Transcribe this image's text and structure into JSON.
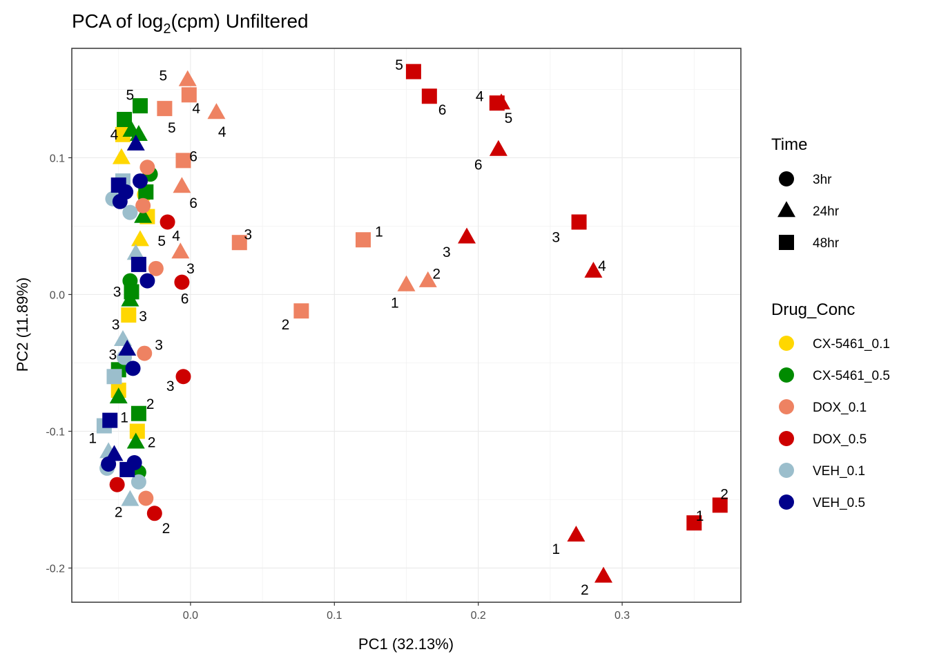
{
  "chart_data": {
    "type": "scatter",
    "title": "PCA of log",
    "title_sub": "2",
    "title_rest": "(cpm) Unfiltered",
    "xlabel": "PC1 (32.13%)",
    "ylabel": "PC2 (11.89%)",
    "xlim": [
      -0.0825,
      0.3825
    ],
    "ylim": [
      -0.225,
      0.18
    ],
    "x_ticks": [
      0.0,
      0.1,
      0.2,
      0.3
    ],
    "x_tick_labels": [
      "0.0",
      "0.1",
      "0.2",
      "0.3"
    ],
    "y_ticks": [
      -0.2,
      -0.1,
      0.0,
      0.1
    ],
    "y_tick_labels": [
      "-0.2",
      "-0.1",
      "0.0",
      "0.1"
    ],
    "grid": true,
    "legend_time": {
      "title": "Time",
      "entries": [
        {
          "label": "3hr",
          "shape": "circle"
        },
        {
          "label": "24hr",
          "shape": "triangle"
        },
        {
          "label": "48hr",
          "shape": "square"
        }
      ]
    },
    "legend_drug": {
      "title": "Drug_Conc",
      "entries": [
        {
          "label": "CX-5461_0.1",
          "color": "#FFD700"
        },
        {
          "label": "CX-5461_0.5",
          "color": "#008B00"
        },
        {
          "label": "DOX_0.1",
          "color": "#EE8262"
        },
        {
          "label": "DOX_0.5",
          "color": "#CD0000"
        },
        {
          "label": "VEH_0.1",
          "color": "#9BBECC"
        },
        {
          "label": "VEH_0.5",
          "color": "#00008B"
        }
      ]
    },
    "points": [
      {
        "x": -0.048,
        "y": 0.1,
        "shape": "triangle",
        "color": "#FFD700"
      },
      {
        "x": -0.047,
        "y": 0.117,
        "shape": "square",
        "color": "#FFD700"
      },
      {
        "x": -0.032,
        "y": 0.073,
        "shape": "circle",
        "color": "#FFD700"
      },
      {
        "x": -0.03,
        "y": 0.057,
        "shape": "square",
        "color": "#FFD700"
      },
      {
        "x": -0.035,
        "y": 0.04,
        "shape": "triangle",
        "color": "#FFD700"
      },
      {
        "x": -0.043,
        "y": -0.015,
        "shape": "square",
        "color": "#FFD700"
      },
      {
        "x": -0.05,
        "y": -0.07,
        "shape": "square",
        "color": "#FFD700"
      },
      {
        "x": -0.037,
        "y": -0.1,
        "shape": "square",
        "color": "#FFD700"
      },
      {
        "x": -0.046,
        "y": 0.128,
        "shape": "square",
        "color": "#008B00"
      },
      {
        "x": -0.035,
        "y": 0.138,
        "shape": "square",
        "color": "#008B00"
      },
      {
        "x": -0.041,
        "y": 0.12,
        "shape": "triangle",
        "color": "#008B00"
      },
      {
        "x": -0.036,
        "y": 0.117,
        "shape": "triangle",
        "color": "#008B00"
      },
      {
        "x": -0.028,
        "y": 0.088,
        "shape": "circle",
        "color": "#008B00"
      },
      {
        "x": -0.031,
        "y": 0.075,
        "shape": "square",
        "color": "#008B00"
      },
      {
        "x": -0.033,
        "y": 0.057,
        "shape": "triangle",
        "color": "#008B00"
      },
      {
        "x": -0.042,
        "y": 0.01,
        "shape": "circle",
        "color": "#008B00"
      },
      {
        "x": -0.041,
        "y": 0.002,
        "shape": "square",
        "color": "#008B00"
      },
      {
        "x": -0.042,
        "y": -0.004,
        "shape": "triangle",
        "color": "#008B00"
      },
      {
        "x": -0.05,
        "y": -0.055,
        "shape": "square",
        "color": "#008B00"
      },
      {
        "x": -0.05,
        "y": -0.075,
        "shape": "triangle",
        "color": "#008B00"
      },
      {
        "x": -0.036,
        "y": -0.087,
        "shape": "square",
        "color": "#008B00"
      },
      {
        "x": -0.038,
        "y": -0.108,
        "shape": "triangle",
        "color": "#008B00"
      },
      {
        "x": -0.036,
        "y": -0.13,
        "shape": "circle",
        "color": "#008B00"
      },
      {
        "x": -0.002,
        "y": 0.157,
        "shape": "triangle",
        "color": "#EE8262"
      },
      {
        "x": -0.001,
        "y": 0.146,
        "shape": "square",
        "color": "#EE8262"
      },
      {
        "x": -0.018,
        "y": 0.136,
        "shape": "square",
        "color": "#EE8262"
      },
      {
        "x": 0.018,
        "y": 0.133,
        "shape": "triangle",
        "color": "#EE8262"
      },
      {
        "x": -0.005,
        "y": 0.098,
        "shape": "square",
        "color": "#EE8262"
      },
      {
        "x": -0.006,
        "y": 0.079,
        "shape": "triangle",
        "color": "#EE8262"
      },
      {
        "x": -0.03,
        "y": 0.093,
        "shape": "circle",
        "color": "#EE8262"
      },
      {
        "x": -0.033,
        "y": 0.065,
        "shape": "circle",
        "color": "#EE8262"
      },
      {
        "x": 0.034,
        "y": 0.038,
        "shape": "square",
        "color": "#EE8262"
      },
      {
        "x": 0.12,
        "y": 0.04,
        "shape": "square",
        "color": "#EE8262"
      },
      {
        "x": -0.007,
        "y": 0.031,
        "shape": "triangle",
        "color": "#EE8262"
      },
      {
        "x": -0.024,
        "y": 0.019,
        "shape": "circle",
        "color": "#EE8262"
      },
      {
        "x": 0.077,
        "y": -0.012,
        "shape": "square",
        "color": "#EE8262"
      },
      {
        "x": 0.15,
        "y": 0.007,
        "shape": "triangle",
        "color": "#EE8262"
      },
      {
        "x": 0.165,
        "y": 0.01,
        "shape": "triangle",
        "color": "#EE8262"
      },
      {
        "x": -0.032,
        "y": -0.043,
        "shape": "circle",
        "color": "#EE8262"
      },
      {
        "x": -0.031,
        "y": -0.149,
        "shape": "circle",
        "color": "#EE8262"
      },
      {
        "x": 0.155,
        "y": 0.163,
        "shape": "square",
        "color": "#CD0000"
      },
      {
        "x": 0.166,
        "y": 0.145,
        "shape": "square",
        "color": "#CD0000"
      },
      {
        "x": 0.213,
        "y": 0.14,
        "shape": "square",
        "color": "#CD0000"
      },
      {
        "x": 0.216,
        "y": 0.14,
        "shape": "triangle",
        "color": "#CD0000"
      },
      {
        "x": 0.214,
        "y": 0.106,
        "shape": "triangle",
        "color": "#CD0000"
      },
      {
        "x": 0.27,
        "y": 0.053,
        "shape": "square",
        "color": "#CD0000"
      },
      {
        "x": 0.192,
        "y": 0.042,
        "shape": "triangle",
        "color": "#CD0000"
      },
      {
        "x": 0.28,
        "y": 0.017,
        "shape": "triangle",
        "color": "#CD0000"
      },
      {
        "x": -0.016,
        "y": 0.053,
        "shape": "circle",
        "color": "#CD0000"
      },
      {
        "x": -0.006,
        "y": 0.009,
        "shape": "circle",
        "color": "#CD0000"
      },
      {
        "x": -0.005,
        "y": -0.06,
        "shape": "circle",
        "color": "#CD0000"
      },
      {
        "x": -0.051,
        "y": -0.139,
        "shape": "circle",
        "color": "#CD0000"
      },
      {
        "x": -0.025,
        "y": -0.16,
        "shape": "circle",
        "color": "#CD0000"
      },
      {
        "x": 0.268,
        "y": -0.176,
        "shape": "triangle",
        "color": "#CD0000"
      },
      {
        "x": 0.287,
        "y": -0.206,
        "shape": "triangle",
        "color": "#CD0000"
      },
      {
        "x": 0.35,
        "y": -0.167,
        "shape": "square",
        "color": "#CD0000"
      },
      {
        "x": 0.368,
        "y": -0.154,
        "shape": "square",
        "color": "#CD0000"
      },
      {
        "x": -0.047,
        "y": 0.083,
        "shape": "square",
        "color": "#9BBECC"
      },
      {
        "x": -0.054,
        "y": 0.07,
        "shape": "circle",
        "color": "#9BBECC"
      },
      {
        "x": -0.042,
        "y": 0.06,
        "shape": "circle",
        "color": "#9BBECC"
      },
      {
        "x": -0.038,
        "y": 0.03,
        "shape": "triangle",
        "color": "#9BBECC"
      },
      {
        "x": -0.047,
        "y": -0.033,
        "shape": "triangle",
        "color": "#9BBECC"
      },
      {
        "x": -0.046,
        "y": -0.046,
        "shape": "circle",
        "color": "#9BBECC"
      },
      {
        "x": -0.053,
        "y": -0.06,
        "shape": "square",
        "color": "#9BBECC"
      },
      {
        "x": -0.06,
        "y": -0.096,
        "shape": "square",
        "color": "#9BBECC"
      },
      {
        "x": -0.057,
        "y": -0.115,
        "shape": "triangle",
        "color": "#9BBECC"
      },
      {
        "x": -0.058,
        "y": -0.127,
        "shape": "circle",
        "color": "#9BBECC"
      },
      {
        "x": -0.036,
        "y": -0.137,
        "shape": "circle",
        "color": "#9BBECC"
      },
      {
        "x": -0.042,
        "y": -0.15,
        "shape": "triangle",
        "color": "#9BBECC"
      },
      {
        "x": -0.038,
        "y": 0.11,
        "shape": "triangle",
        "color": "#00008B"
      },
      {
        "x": -0.05,
        "y": 0.08,
        "shape": "square",
        "color": "#00008B"
      },
      {
        "x": -0.045,
        "y": 0.075,
        "shape": "circle",
        "color": "#00008B"
      },
      {
        "x": -0.049,
        "y": 0.068,
        "shape": "circle",
        "color": "#00008B"
      },
      {
        "x": -0.035,
        "y": 0.083,
        "shape": "circle",
        "color": "#00008B"
      },
      {
        "x": -0.036,
        "y": 0.022,
        "shape": "square",
        "color": "#00008B"
      },
      {
        "x": -0.03,
        "y": 0.01,
        "shape": "circle",
        "color": "#00008B"
      },
      {
        "x": -0.044,
        "y": -0.04,
        "shape": "triangle",
        "color": "#00008B"
      },
      {
        "x": -0.04,
        "y": -0.054,
        "shape": "circle",
        "color": "#00008B"
      },
      {
        "x": -0.056,
        "y": -0.092,
        "shape": "square",
        "color": "#00008B"
      },
      {
        "x": -0.053,
        "y": -0.117,
        "shape": "triangle",
        "color": "#00008B"
      },
      {
        "x": -0.057,
        "y": -0.124,
        "shape": "circle",
        "color": "#00008B"
      },
      {
        "x": -0.039,
        "y": -0.123,
        "shape": "circle",
        "color": "#00008B"
      },
      {
        "x": -0.044,
        "y": -0.128,
        "shape": "square",
        "color": "#00008B"
      }
    ],
    "point_labels": [
      {
        "text": "5",
        "x": -0.019,
        "y": 0.16
      },
      {
        "text": "5",
        "x": -0.042,
        "y": 0.146
      },
      {
        "text": "4",
        "x": 0.004,
        "y": 0.136
      },
      {
        "text": "4",
        "x": 0.022,
        "y": 0.119
      },
      {
        "text": "5",
        "x": -0.013,
        "y": 0.122
      },
      {
        "text": "4",
        "x": -0.053,
        "y": 0.117
      },
      {
        "text": "6",
        "x": 0.002,
        "y": 0.101
      },
      {
        "text": "6",
        "x": 0.002,
        "y": 0.067
      },
      {
        "text": "3",
        "x": 0.04,
        "y": 0.044
      },
      {
        "text": "1",
        "x": 0.131,
        "y": 0.046
      },
      {
        "text": "4",
        "x": -0.01,
        "y": 0.043
      },
      {
        "text": "5",
        "x": -0.02,
        "y": 0.039
      },
      {
        "text": "3",
        "x": 0.0,
        "y": 0.019
      },
      {
        "text": "2",
        "x": 0.171,
        "y": 0.015
      },
      {
        "text": "1",
        "x": 0.142,
        "y": -0.006
      },
      {
        "text": "6",
        "x": -0.004,
        "y": -0.003
      },
      {
        "text": "3",
        "x": -0.051,
        "y": 0.002
      },
      {
        "text": "3",
        "x": -0.033,
        "y": -0.016
      },
      {
        "text": "3",
        "x": -0.052,
        "y": -0.022
      },
      {
        "text": "2",
        "x": 0.066,
        "y": -0.022
      },
      {
        "text": "3",
        "x": -0.022,
        "y": -0.037
      },
      {
        "text": "3",
        "x": -0.054,
        "y": -0.044
      },
      {
        "text": "3",
        "x": -0.014,
        "y": -0.067
      },
      {
        "text": "2",
        "x": -0.028,
        "y": -0.08
      },
      {
        "text": "1",
        "x": -0.046,
        "y": -0.09
      },
      {
        "text": "1",
        "x": -0.068,
        "y": -0.105
      },
      {
        "text": "2",
        "x": -0.027,
        "y": -0.108
      },
      {
        "text": "2",
        "x": -0.05,
        "y": -0.159
      },
      {
        "text": "2",
        "x": -0.017,
        "y": -0.171
      },
      {
        "text": "5",
        "x": 0.145,
        "y": 0.168
      },
      {
        "text": "6",
        "x": 0.175,
        "y": 0.135
      },
      {
        "text": "4",
        "x": 0.201,
        "y": 0.145
      },
      {
        "text": "5",
        "x": 0.221,
        "y": 0.129
      },
      {
        "text": "6",
        "x": 0.2,
        "y": 0.095
      },
      {
        "text": "3",
        "x": 0.254,
        "y": 0.042
      },
      {
        "text": "3",
        "x": 0.178,
        "y": 0.031
      },
      {
        "text": "4",
        "x": 0.286,
        "y": 0.021
      },
      {
        "text": "2",
        "x": 0.371,
        "y": -0.146
      },
      {
        "text": "1",
        "x": 0.354,
        "y": -0.162
      },
      {
        "text": "1",
        "x": 0.254,
        "y": -0.186
      },
      {
        "text": "2",
        "x": 0.274,
        "y": -0.216
      }
    ]
  }
}
